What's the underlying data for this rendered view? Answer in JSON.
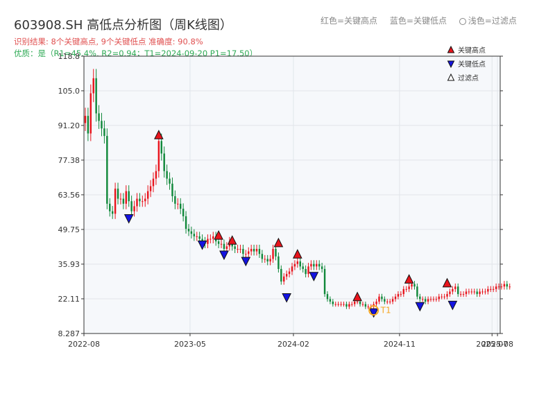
{
  "chart_data": {
    "type": "candlestick",
    "title": "603908.SH 高低点分析图（周K线图）",
    "subtitle_lines": [
      "识别结果: 8个关键高点, 9个关键低点   准确度: 90.8%",
      "优质：是（R1=45.4%, R2=0.94；T1=2024-09-20 P1=17.50）"
    ],
    "top_legend": [
      "红色=关键高点",
      "蓝色=关键低点",
      "浅色=过滤点"
    ],
    "inner_legend": [
      {
        "label": "关键高点",
        "marker": "up-triangle",
        "color": "#e8141c"
      },
      {
        "label": "关键低点",
        "marker": "down-triangle",
        "color": "#1414e0"
      },
      {
        "label": "过滤点",
        "marker": "up-triangle",
        "color": "#ffffff"
      }
    ],
    "y_ticks": [
      "8.287",
      "22.11",
      "35.93",
      "49.75",
      "63.56",
      "77.38",
      "91.20",
      "105.0",
      "118.8"
    ],
    "ylim": [
      8.287,
      118.8
    ],
    "x_ticks": [
      {
        "label": "2022-08",
        "x": 0
      },
      {
        "label": "2023-05",
        "x": 39
      },
      {
        "label": "2024-02",
        "x": 77
      },
      {
        "label": "2024-11",
        "x": 116
      },
      {
        "label": "2025-07",
        "x": 150
      },
      {
        "label": "2025-08",
        "x": 152
      }
    ],
    "xlim": [
      0,
      153
    ],
    "grid": true,
    "series_closes": [
      95,
      88,
      104,
      110,
      96,
      93,
      90,
      87,
      60,
      57,
      56,
      66,
      62,
      62,
      60,
      65,
      61,
      57,
      59,
      62,
      61,
      61,
      62,
      65,
      67,
      70,
      73,
      85,
      80,
      73,
      70,
      68,
      63,
      60,
      60,
      58,
      55,
      50,
      49,
      48,
      47,
      47,
      46,
      45,
      44,
      46,
      46,
      47,
      45,
      44,
      44,
      42,
      43,
      45,
      43,
      42,
      42,
      42,
      40,
      40,
      41,
      42,
      41,
      42,
      40,
      38,
      38,
      37,
      38,
      42,
      39,
      34,
      29,
      31,
      32,
      33,
      35,
      36,
      37,
      35,
      34,
      32,
      35,
      36,
      35,
      36,
      35,
      34,
      24,
      22,
      21,
      20,
      20,
      20,
      20,
      20,
      19,
      20,
      20,
      21,
      21,
      20,
      20,
      19,
      19,
      19,
      20,
      21,
      23,
      22,
      21,
      21,
      21,
      22,
      23,
      24,
      24,
      26,
      26,
      27,
      28,
      27,
      23,
      22,
      22,
      21,
      22,
      22,
      22,
      22,
      23,
      23,
      23,
      24,
      25,
      26,
      27,
      24,
      24,
      24,
      25,
      25,
      25,
      25,
      24,
      25,
      25,
      25,
      26,
      26,
      26,
      27,
      27,
      27,
      28,
      27,
      27
    ],
    "annotations": [
      {
        "type": "high",
        "x": 27,
        "y": 87.5
      },
      {
        "type": "high",
        "x": 49,
        "y": 47.5
      },
      {
        "type": "high",
        "x": 54,
        "y": 45.5
      },
      {
        "type": "high",
        "x": 71,
        "y": 44.5
      },
      {
        "type": "high",
        "x": 78,
        "y": 40.0
      },
      {
        "type": "high",
        "x": 100,
        "y": 23.0
      },
      {
        "type": "high",
        "x": 119,
        "y": 30.0
      },
      {
        "type": "high",
        "x": 133,
        "y": 28.5
      },
      {
        "type": "low",
        "x": 16,
        "y": 54.0
      },
      {
        "type": "low",
        "x": 43,
        "y": 43.5
      },
      {
        "type": "low",
        "x": 51,
        "y": 39.5
      },
      {
        "type": "low",
        "x": 59,
        "y": 37.0
      },
      {
        "type": "low",
        "x": 74,
        "y": 22.5
      },
      {
        "type": "low",
        "x": 84,
        "y": 31.0
      },
      {
        "type": "low",
        "x": 106,
        "y": 16.5
      },
      {
        "type": "low",
        "x": 123,
        "y": 19.0
      },
      {
        "type": "low",
        "x": 135,
        "y": 19.5
      },
      {
        "type": "t1",
        "x": 106,
        "y": 17.5,
        "label": "T1"
      }
    ]
  }
}
